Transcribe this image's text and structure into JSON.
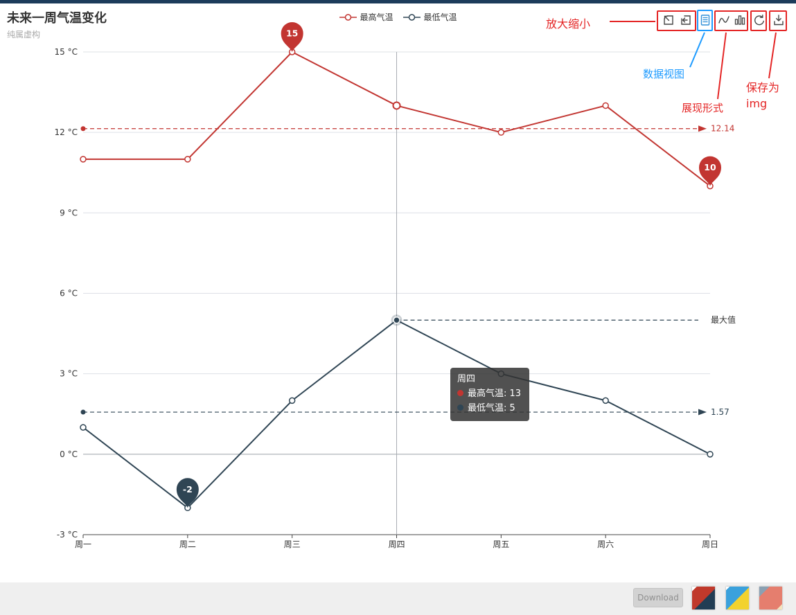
{
  "window": {
    "topbar_color": "#1d3c5b"
  },
  "chart_data": {
    "type": "line",
    "title": "未来一周气温变化",
    "subtitle": "纯属虚构",
    "categories": [
      "周一",
      "周二",
      "周三",
      "周四",
      "周五",
      "周六",
      "周日"
    ],
    "series": [
      {
        "name": "最高气温",
        "color": "#c23531",
        "values": [
          11,
          11,
          15,
          13,
          12,
          13,
          10
        ],
        "mark_points": [
          {
            "category": "周三",
            "value": 15,
            "label": "15"
          },
          {
            "category": "周日",
            "value": 10,
            "label": "10"
          }
        ],
        "mark_lines": [
          {
            "value": 12.14,
            "label": "12.14",
            "arrow": true,
            "start": "left"
          }
        ]
      },
      {
        "name": "最低气温",
        "color": "#2f4554",
        "values": [
          1,
          -2,
          2,
          5,
          3,
          2,
          0
        ],
        "mark_points": [
          {
            "category": "周二",
            "value": -2,
            "label": "-2"
          }
        ],
        "mark_lines": [
          {
            "value": 1.57,
            "label": "1.57",
            "arrow": true,
            "start": "left"
          },
          {
            "value": 5,
            "label": "最大值",
            "arrow": false,
            "start": "周四",
            "label_color": "#333333"
          }
        ]
      }
    ],
    "ylim": [
      -3,
      15
    ],
    "yticks": [
      {
        "value": -3,
        "label": "-3 °C"
      },
      {
        "value": 0,
        "label": "0 °C"
      },
      {
        "value": 3,
        "label": "3 °C"
      },
      {
        "value": 6,
        "label": "6 °C"
      },
      {
        "value": 9,
        "label": "9 °C"
      },
      {
        "value": 12,
        "label": "12 °C"
      },
      {
        "value": 15,
        "label": "15 °C"
      }
    ],
    "hover_category": "周四",
    "grid": true,
    "legend_position": "top"
  },
  "tooltip": {
    "title": "周四",
    "rows": [
      {
        "name": "最高气温",
        "value": "13",
        "color": "#c23531"
      },
      {
        "name": "最低气温",
        "value": "5",
        "color": "#2f4554"
      }
    ]
  },
  "toolbox": {
    "icon_color": "#444444",
    "data_view_color": "#2f8fd8",
    "icons": [
      "zoom-select-icon",
      "zoom-back-icon",
      "data-view-icon",
      "line-chart-icon",
      "bar-chart-icon",
      "restore-icon",
      "save-image-icon"
    ]
  },
  "annotations": {
    "red": "#e42525",
    "blue": "#1e9bff",
    "zoom_label": "放大缩小",
    "data_view_label": "数据视图",
    "magic_type_label": "展现形式",
    "save_label_line1": "保存为",
    "save_label_line2": "img"
  },
  "footer": {
    "download_label": "Download",
    "theme_swatches": [
      "red-navy-theme",
      "blue-yellow-theme",
      "slate-coral-theme"
    ]
  }
}
